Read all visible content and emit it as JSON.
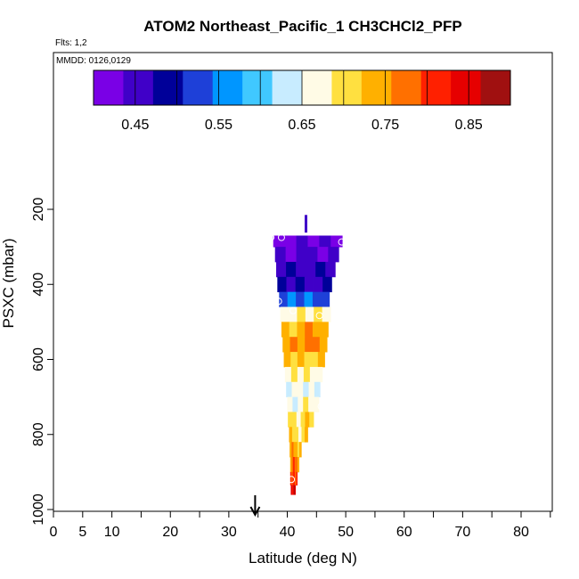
{
  "chart_data": {
    "type": "heatmap",
    "title": "ATOM2 Northeast_Pacific_1 CH3CHCl2_PFP",
    "flights_label": "Flts: 1,2",
    "dates_label": "MMDD: 0126,0129",
    "xlabel": "Latitude (deg N)",
    "ylabel": "PSXC (mbar)",
    "xlim": [
      0,
      85
    ],
    "ylim": [
      1000,
      0
    ],
    "x_ticks": [
      0,
      5,
      10,
      20,
      30,
      40,
      50,
      60,
      70,
      80
    ],
    "y_ticks": [
      200,
      400,
      600,
      800,
      1000
    ],
    "colorbar": {
      "range": [
        0.4,
        0.9
      ],
      "ticks": [
        0.45,
        0.55,
        0.65,
        0.75,
        0.85
      ],
      "tick_labels": [
        "0.45",
        "0.55",
        "0.65",
        "0.75",
        "0.85"
      ],
      "colors": [
        "#7a00e6",
        "#4000c8",
        "#000099",
        "#1e40d8",
        "#0096ff",
        "#40c8ff",
        "#c8ecff",
        "#fffbe6",
        "#ffe040",
        "#ffb000",
        "#ff7000",
        "#ff2000",
        "#e60000",
        "#a01010"
      ]
    },
    "marker": {
      "latitude": 34.5,
      "label": "arrow"
    },
    "layers": [
      {
        "p": 280,
        "lat_min": 37.6,
        "lat_max": 49.4,
        "value": 0.43
      },
      {
        "p": 320,
        "lat_min": 37.9,
        "lat_max": 48.8,
        "value": 0.44
      },
      {
        "p": 360,
        "lat_min": 38.1,
        "lat_max": 48.2,
        "value": 0.46
      },
      {
        "p": 400,
        "lat_min": 38.3,
        "lat_max": 47.6,
        "value": 0.47
      },
      {
        "p": 440,
        "lat_min": 38.6,
        "lat_max": 47.2,
        "value": 0.54
      },
      {
        "p": 480,
        "lat_min": 38.8,
        "lat_max": 47.4,
        "value": 0.68
      },
      {
        "p": 520,
        "lat_min": 39.0,
        "lat_max": 47.0,
        "value": 0.74
      },
      {
        "p": 560,
        "lat_min": 39.2,
        "lat_max": 46.8,
        "value": 0.76
      },
      {
        "p": 600,
        "lat_min": 39.4,
        "lat_max": 46.4,
        "value": 0.72
      },
      {
        "p": 640,
        "lat_min": 39.6,
        "lat_max": 46.0,
        "value": 0.68
      },
      {
        "p": 680,
        "lat_min": 39.8,
        "lat_max": 45.6,
        "value": 0.66
      },
      {
        "p": 720,
        "lat_min": 40.0,
        "lat_max": 45.4,
        "value": 0.67
      },
      {
        "p": 760,
        "lat_min": 40.1,
        "lat_max": 44.5,
        "value": 0.7
      },
      {
        "p": 800,
        "lat_min": 40.3,
        "lat_max": 43.5,
        "value": 0.7
      },
      {
        "p": 840,
        "lat_min": 40.4,
        "lat_max": 42.4,
        "value": 0.74
      },
      {
        "p": 880,
        "lat_min": 40.5,
        "lat_max": 42.0,
        "value": 0.77
      },
      {
        "p": 920,
        "lat_min": 40.5,
        "lat_max": 41.7,
        "value": 0.8
      },
      {
        "p": 950,
        "lat_min": 40.6,
        "lat_max": 41.4,
        "value": 0.85
      }
    ],
    "samples": [
      {
        "lat": 37.2,
        "p": 275
      },
      {
        "lat": 39.0,
        "p": 275
      },
      {
        "lat": 49.3,
        "p": 287
      },
      {
        "lat": 38.5,
        "p": 445
      },
      {
        "lat": 41.0,
        "p": 470
      },
      {
        "lat": 45.5,
        "p": 483
      },
      {
        "lat": 47.5,
        "p": 585
      },
      {
        "lat": 45.8,
        "p": 725
      },
      {
        "lat": 40.7,
        "p": 920
      }
    ]
  }
}
